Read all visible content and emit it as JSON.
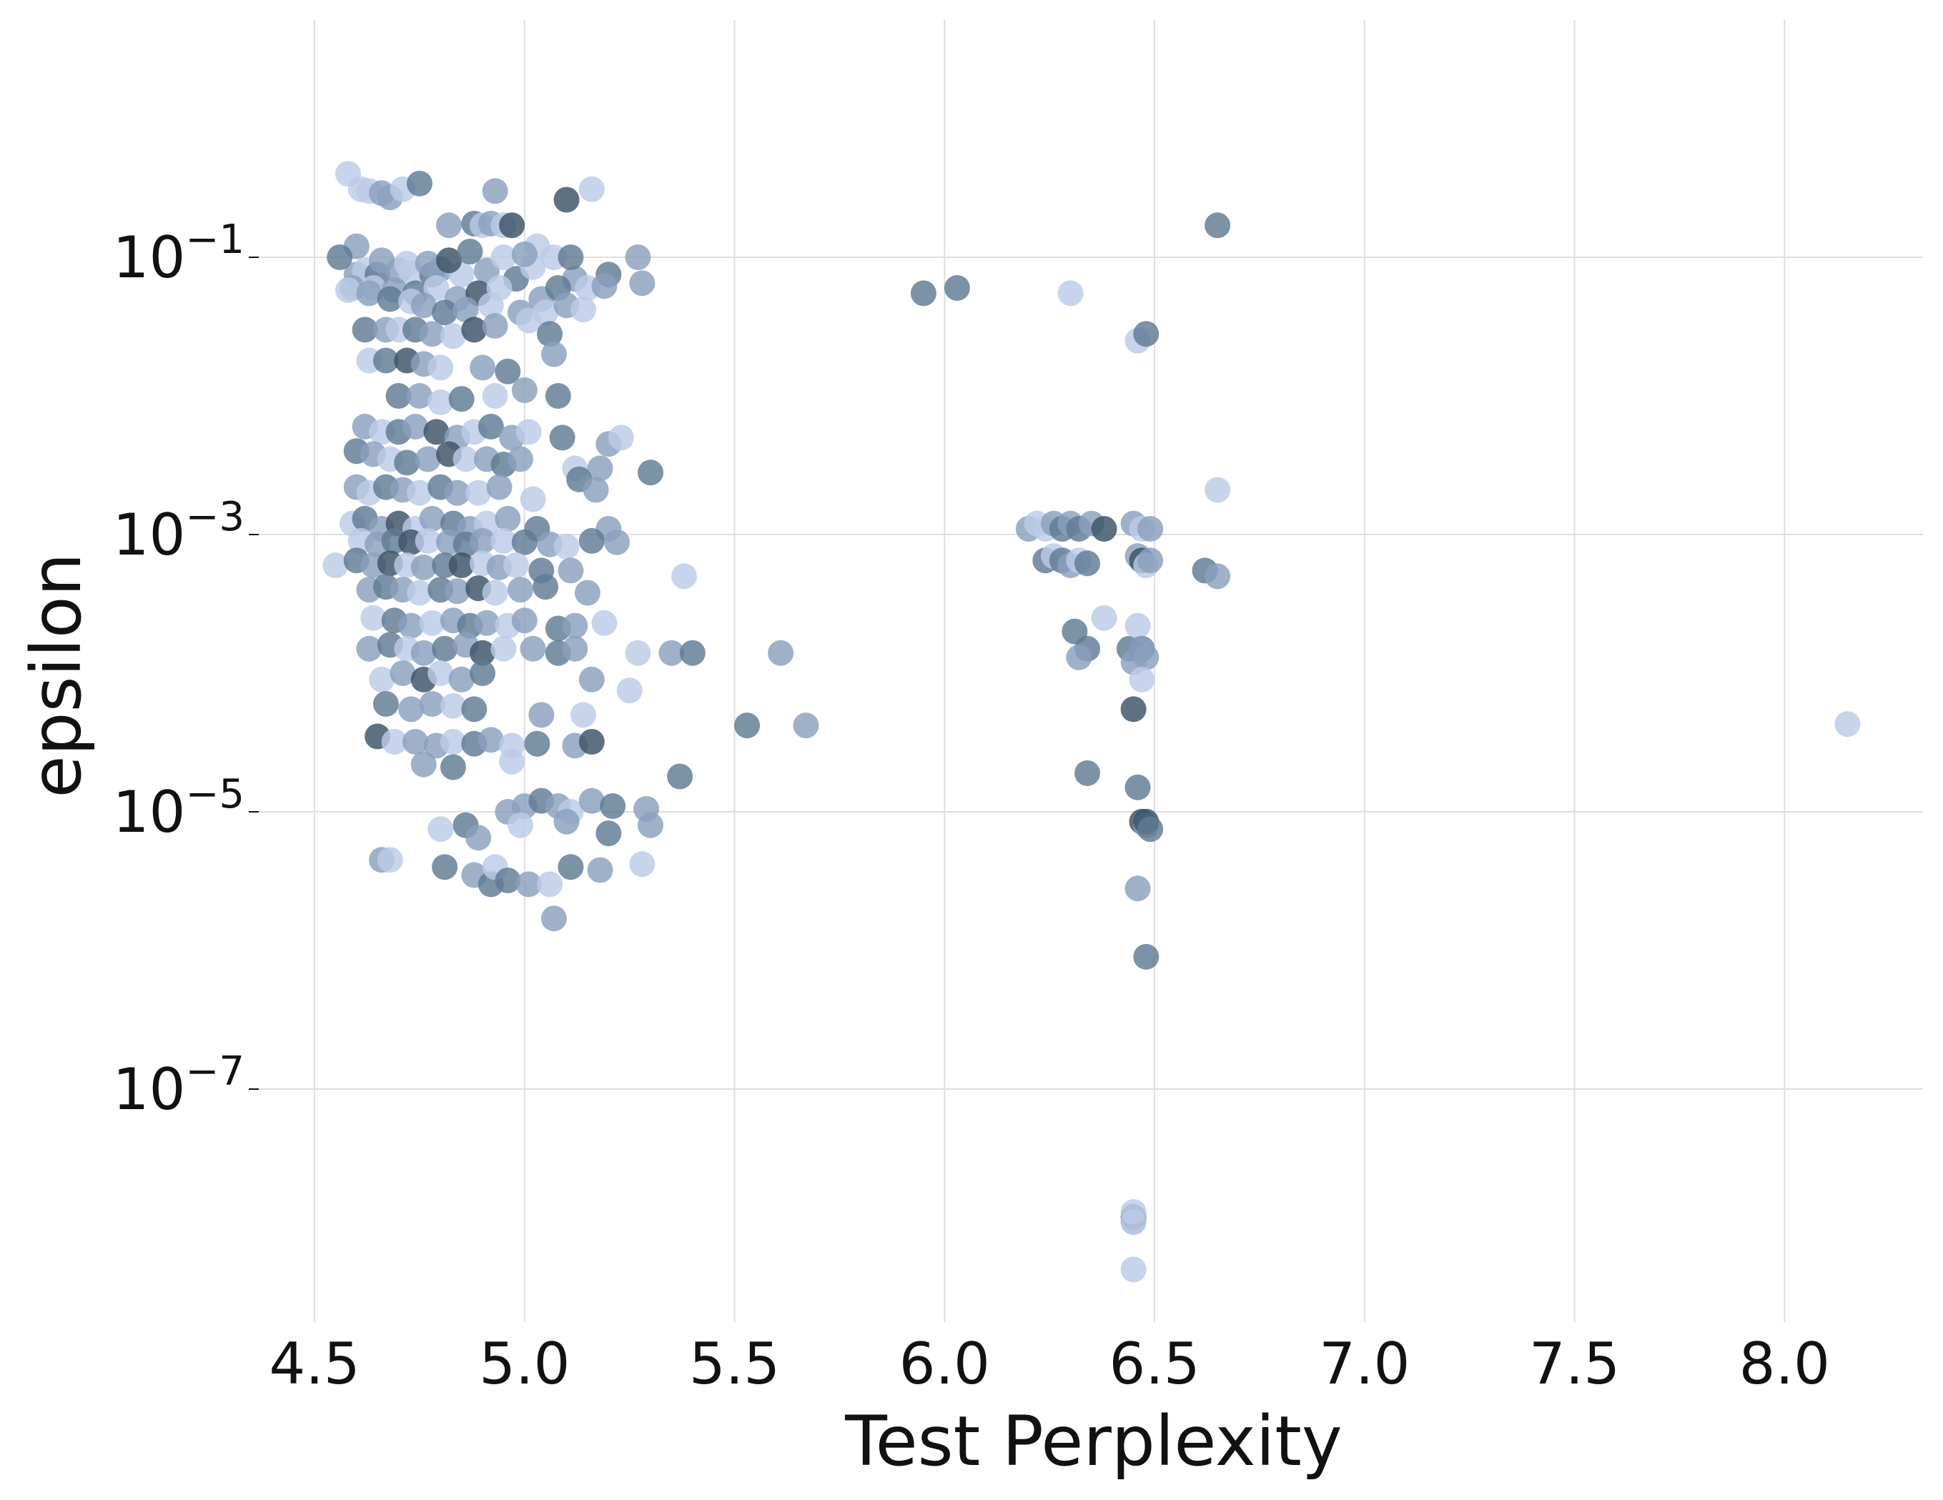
{
  "chart_data": {
    "type": "scatter",
    "title": "",
    "xlabel": "Test Perplexity",
    "ylabel": "epsilon",
    "xlim": [
      4.5,
      8.3
    ],
    "ylim": [
      1e-09,
      0.5
    ],
    "yscale": "log",
    "grid": true,
    "legend": "none",
    "xticks": [
      4.5,
      5.0,
      5.5,
      6.0,
      6.5,
      7.0,
      7.5,
      8.0
    ],
    "xtick_labels": [
      "4.5",
      "5.0",
      "5.5",
      "6.0",
      "6.5",
      "7.0",
      "7.5",
      "8.0"
    ],
    "yticks": [
      {
        "value": 0.1,
        "base": "10",
        "exp": "−1"
      },
      {
        "value": 0.001,
        "base": "10",
        "exp": "−3"
      },
      {
        "value": 1e-05,
        "base": "10",
        "exp": "−5"
      },
      {
        "value": 1e-07,
        "base": "10",
        "exp": "−7"
      }
    ],
    "colors": {
      "light": "#bccbe6",
      "medium": "#8aa0bd",
      "dark": "#5f7a94",
      "darkest": "#3a5266",
      "grid": "#dedede"
    },
    "x": [
      4.58,
      4.61,
      4.63,
      4.66,
      4.68,
      4.71,
      4.75,
      4.93,
      5.1,
      5.16,
      4.6,
      6.65,
      4.82,
      4.88,
      4.9,
      4.92,
      4.95,
      4.97,
      5.03,
      4.6,
      4.62,
      4.65,
      4.7,
      4.73,
      4.78,
      4.8,
      4.85,
      4.91,
      4.98,
      5.02,
      5.12,
      5.2,
      5.28,
      4.59,
      4.64,
      4.69,
      4.74,
      4.79,
      4.84,
      4.89,
      4.94,
      5.04,
      5.08,
      5.15,
      5.19,
      4.56,
      4.66,
      4.72,
      4.77,
      4.82,
      4.87,
      4.95,
      5.0,
      5.07,
      5.11,
      5.27,
      4.58,
      4.63,
      4.68,
      4.73,
      4.76,
      4.81,
      4.86,
      4.92,
      4.99,
      5.05,
      5.1,
      5.14,
      4.62,
      4.67,
      4.7,
      4.74,
      4.78,
      4.83,
      4.88,
      4.93,
      5.01,
      5.06,
      4.63,
      4.67,
      4.72,
      4.76,
      4.8,
      4.9,
      4.96,
      5.07,
      4.7,
      4.75,
      4.8,
      4.85,
      4.93,
      5.0,
      5.08,
      4.62,
      4.66,
      4.7,
      4.74,
      4.79,
      4.84,
      4.88,
      4.92,
      4.97,
      5.01,
      5.09,
      5.2,
      5.23,
      4.6,
      4.64,
      4.68,
      4.72,
      4.77,
      4.82,
      4.86,
      4.91,
      4.95,
      4.99,
      5.12,
      5.18,
      5.3,
      4.6,
      4.63,
      4.67,
      4.71,
      4.75,
      4.8,
      4.84,
      4.89,
      4.94,
      5.02,
      5.13,
      5.17,
      4.59,
      4.62,
      4.66,
      4.7,
      4.74,
      4.78,
      4.83,
      4.87,
      4.91,
      4.96,
      5.03,
      5.2,
      4.61,
      4.65,
      4.69,
      4.73,
      4.77,
      4.82,
      4.86,
      4.9,
      4.95,
      5.0,
      5.06,
      5.1,
      5.16,
      5.22,
      4.55,
      4.6,
      4.64,
      4.68,
      4.72,
      4.76,
      4.81,
      4.85,
      4.9,
      4.94,
      4.98,
      5.04,
      5.11,
      5.38,
      4.63,
      4.67,
      4.71,
      4.75,
      4.8,
      4.84,
      4.89,
      4.93,
      4.99,
      5.05,
      5.15,
      4.64,
      4.69,
      4.73,
      4.78,
      4.83,
      4.87,
      4.91,
      4.96,
      5.0,
      5.08,
      5.12,
      5.19,
      4.63,
      4.68,
      4.72,
      4.76,
      4.81,
      4.86,
      4.9,
      4.95,
      5.02,
      5.08,
      5.12,
      5.27,
      5.35,
      5.4,
      5.61,
      4.66,
      4.71,
      4.76,
      4.8,
      4.85,
      4.9,
      5.16,
      5.25,
      4.67,
      4.73,
      4.78,
      4.83,
      4.88,
      5.04,
      5.14,
      5.53,
      5.67,
      4.65,
      4.69,
      4.74,
      4.79,
      4.83,
      4.88,
      4.92,
      4.97,
      5.03,
      5.12,
      5.16,
      4.76,
      4.83,
      4.97,
      5.37,
      4.96,
      5.0,
      5.04,
      5.08,
      5.11,
      5.16,
      5.21,
      5.29,
      4.8,
      4.86,
      4.89,
      4.99,
      5.1,
      5.2,
      5.3,
      4.66,
      4.68,
      4.81,
      4.88,
      4.92,
      4.93,
      4.96,
      5.01,
      5.06,
      5.11,
      5.18,
      5.28,
      5.07,
      5.95,
      6.03,
      6.3,
      6.46,
      6.48,
      6.2,
      6.22,
      6.24,
      6.26,
      6.28,
      6.3,
      6.32,
      6.35,
      6.38,
      6.45,
      6.47,
      6.49,
      6.65,
      6.24,
      6.26,
      6.28,
      6.3,
      6.32,
      6.34,
      6.46,
      6.47,
      6.48,
      6.49,
      6.62,
      6.65,
      6.38,
      6.31,
      6.34,
      6.32,
      6.44,
      6.45,
      6.46,
      6.47,
      6.48,
      6.45,
      6.47,
      6.47,
      6.34,
      6.46,
      6.47,
      6.48,
      6.48,
      6.49,
      6.46,
      6.48,
      6.45,
      6.45,
      6.45,
      6.45,
      6.45,
      8.15
    ],
    "y": [
      0.4,
      0.31,
      0.3,
      0.29,
      0.27,
      0.31,
      0.34,
      0.3,
      0.26,
      0.31,
      0.12,
      0.17,
      0.17,
      0.175,
      0.17,
      0.175,
      0.17,
      0.17,
      0.12,
      0.075,
      0.08,
      0.075,
      0.08,
      0.077,
      0.075,
      0.082,
      0.075,
      0.08,
      0.07,
      0.085,
      0.07,
      0.075,
      0.065,
      0.06,
      0.06,
      0.058,
      0.055,
      0.06,
      0.05,
      0.055,
      0.06,
      0.05,
      0.06,
      0.06,
      0.062,
      0.1,
      0.095,
      0.09,
      0.09,
      0.095,
      0.11,
      0.1,
      0.105,
      0.1,
      0.1,
      0.1,
      0.058,
      0.055,
      0.05,
      0.048,
      0.045,
      0.04,
      0.042,
      0.045,
      0.04,
      0.04,
      0.045,
      0.042,
      0.03,
      0.03,
      0.03,
      0.03,
      0.028,
      0.027,
      0.03,
      0.032,
      0.035,
      0.028,
      0.018,
      0.018,
      0.018,
      0.017,
      0.016,
      0.016,
      0.015,
      0.02,
      0.01,
      0.01,
      0.009,
      0.0095,
      0.01,
      0.011,
      0.01,
      0.006,
      0.0055,
      0.0055,
      0.006,
      0.0055,
      0.005,
      0.0055,
      0.006,
      0.005,
      0.0055,
      0.005,
      0.0045,
      0.005,
      0.004,
      0.0038,
      0.0035,
      0.0033,
      0.0035,
      0.0038,
      0.0035,
      0.0035,
      0.0032,
      0.0035,
      0.003,
      0.003,
      0.0028,
      0.0022,
      0.002,
      0.0022,
      0.0021,
      0.002,
      0.0022,
      0.002,
      0.002,
      0.0022,
      0.0018,
      0.0025,
      0.0021,
      0.0012,
      0.0013,
      0.0011,
      0.0012,
      0.0011,
      0.0013,
      0.0012,
      0.0011,
      0.0012,
      0.0013,
      0.0011,
      0.0011,
      0.0009,
      0.00085,
      0.0009,
      0.00088,
      0.0009,
      0.00088,
      0.00085,
      0.0009,
      0.0009,
      0.00088,
      0.00085,
      0.00082,
      0.0009,
      0.00088,
      0.0006,
      0.00065,
      0.0006,
      0.00062,
      0.0006,
      0.00058,
      0.0006,
      0.0006,
      0.00062,
      0.00058,
      0.0006,
      0.00055,
      0.00055,
      0.0005,
      0.0004,
      0.00042,
      0.0004,
      0.00038,
      0.0004,
      0.00039,
      0.00041,
      0.00038,
      0.0004,
      0.00042,
      0.00038,
      0.00025,
      0.00024,
      0.00022,
      0.00023,
      0.00024,
      0.00022,
      0.00023,
      0.00022,
      0.00024,
      0.00021,
      0.00022,
      0.00023,
      0.00015,
      0.00016,
      0.00015,
      0.00014,
      0.00015,
      0.00016,
      0.00014,
      0.00015,
      0.00015,
      0.00014,
      0.00015,
      0.00014,
      0.00014,
      0.00014,
      0.00014,
      9e-05,
      0.0001,
      9e-05,
      0.0001,
      9e-05,
      0.0001,
      9e-05,
      7.5e-05,
      6e-05,
      5.5e-05,
      6e-05,
      5.8e-05,
      5.5e-05,
      5e-05,
      5e-05,
      4.2e-05,
      4.2e-05,
      3.5e-05,
      3.2e-05,
      3.2e-05,
      3e-05,
      3.2e-05,
      3.1e-05,
      3.3e-05,
      3e-05,
      3.1e-05,
      3e-05,
      3.2e-05,
      2.2e-05,
      2.1e-05,
      2.3e-05,
      1.8e-05,
      1e-05,
      1.1e-05,
      1.2e-05,
      1.1e-05,
      1e-05,
      1.2e-05,
      1.1e-05,
      1.05e-05,
      7.5e-06,
      8e-06,
      6.5e-06,
      8e-06,
      8.5e-06,
      7e-06,
      8e-06,
      4.5e-06,
      4.5e-06,
      4e-06,
      3.5e-06,
      3e-06,
      4e-06,
      3.2e-06,
      3e-06,
      3e-06,
      4e-06,
      3.8e-06,
      4.2e-06,
      1.7e-06,
      0.055,
      0.06,
      0.055,
      0.025,
      0.028,
      0.0011,
      0.0012,
      0.0011,
      0.0012,
      0.0011,
      0.0012,
      0.0011,
      0.0012,
      0.0011,
      0.0012,
      0.0011,
      0.0011,
      0.0021,
      0.00065,
      0.0007,
      0.00065,
      0.0006,
      0.00065,
      0.00062,
      0.0007,
      0.00065,
      0.0006,
      0.00065,
      0.00055,
      0.0005,
      0.00025,
      0.0002,
      0.00015,
      0.00013,
      0.00015,
      0.00012,
      0.00022,
      0.00015,
      0.00013,
      5.5e-05,
      9e-05,
      0.00015,
      1.9e-05,
      1.5e-05,
      8.5e-06,
      8e-06,
      8.5e-06,
      7.5e-06,
      2.8e-06,
      9e-07,
      1.1e-08,
      1.2e-08,
      1.3e-08,
      1.1e-08,
      5e-09,
      4.3e-05
    ],
    "shade": [
      0,
      0,
      0,
      1,
      1,
      0,
      2,
      1,
      3,
      0,
      1,
      2,
      1,
      2,
      0,
      1,
      0,
      3,
      0,
      1,
      0,
      2,
      1,
      0,
      2,
      1,
      0,
      1,
      2,
      0,
      1,
      2,
      1,
      1,
      0,
      1,
      2,
      0,
      1,
      3,
      0,
      1,
      2,
      0,
      1,
      2,
      1,
      0,
      1,
      3,
      2,
      0,
      1,
      0,
      2,
      1,
      0,
      1,
      2,
      0,
      1,
      2,
      1,
      0,
      1,
      0,
      1,
      0,
      2,
      1,
      0,
      2,
      1,
      0,
      3,
      1,
      0,
      2,
      0,
      2,
      3,
      1,
      0,
      1,
      2,
      1,
      2,
      1,
      0,
      2,
      0,
      1,
      2,
      1,
      0,
      2,
      1,
      3,
      1,
      0,
      2,
      1,
      0,
      2,
      1,
      0,
      2,
      1,
      0,
      2,
      1,
      3,
      0,
      1,
      2,
      1,
      0,
      1,
      2,
      1,
      0,
      2,
      1,
      0,
      2,
      1,
      0,
      1,
      0,
      2,
      1,
      0,
      2,
      1,
      3,
      0,
      1,
      2,
      1,
      0,
      1,
      2,
      1,
      0,
      1,
      2,
      3,
      0,
      1,
      2,
      1,
      0,
      2,
      1,
      0,
      2,
      1,
      0,
      2,
      1,
      3,
      0,
      1,
      2,
      3,
      0,
      1,
      0,
      2,
      1,
      0,
      1,
      2,
      1,
      0,
      2,
      1,
      3,
      0,
      1,
      2,
      1,
      0,
      2,
      1,
      0,
      1,
      2,
      1,
      0,
      1,
      2,
      1,
      0,
      1,
      2,
      0,
      1,
      2,
      1,
      3,
      0,
      1,
      2,
      1,
      0,
      1,
      2,
      1,
      0,
      1,
      3,
      0,
      1,
      2,
      1,
      0,
      2,
      1,
      1,
      0,
      2,
      1,
      0,
      2,
      1,
      3,
      0,
      1,
      1,
      0,
      2,
      1,
      0,
      2,
      1,
      3,
      1,
      2,
      0,
      2,
      1,
      1,
      2,
      1,
      0,
      1,
      2,
      1,
      0,
      2,
      1,
      0,
      1,
      2,
      1,
      1,
      0,
      2,
      1,
      2,
      0,
      2,
      1,
      0,
      2,
      1,
      0,
      1,
      2,
      2,
      0,
      0,
      2,
      1,
      0,
      0,
      1,
      2,
      1,
      2,
      1,
      3,
      1,
      0,
      1,
      0,
      2,
      0,
      2,
      1,
      0,
      2,
      1,
      3,
      0,
      1,
      2,
      1,
      0,
      2,
      2,
      1,
      2,
      1,
      0,
      2,
      1,
      3,
      0,
      1,
      2,
      2,
      3,
      1,
      3,
      2,
      1,
      2,
      1,
      2,
      0,
      0,
      0,
      0,
      0,
      0,
      0
    ]
  }
}
